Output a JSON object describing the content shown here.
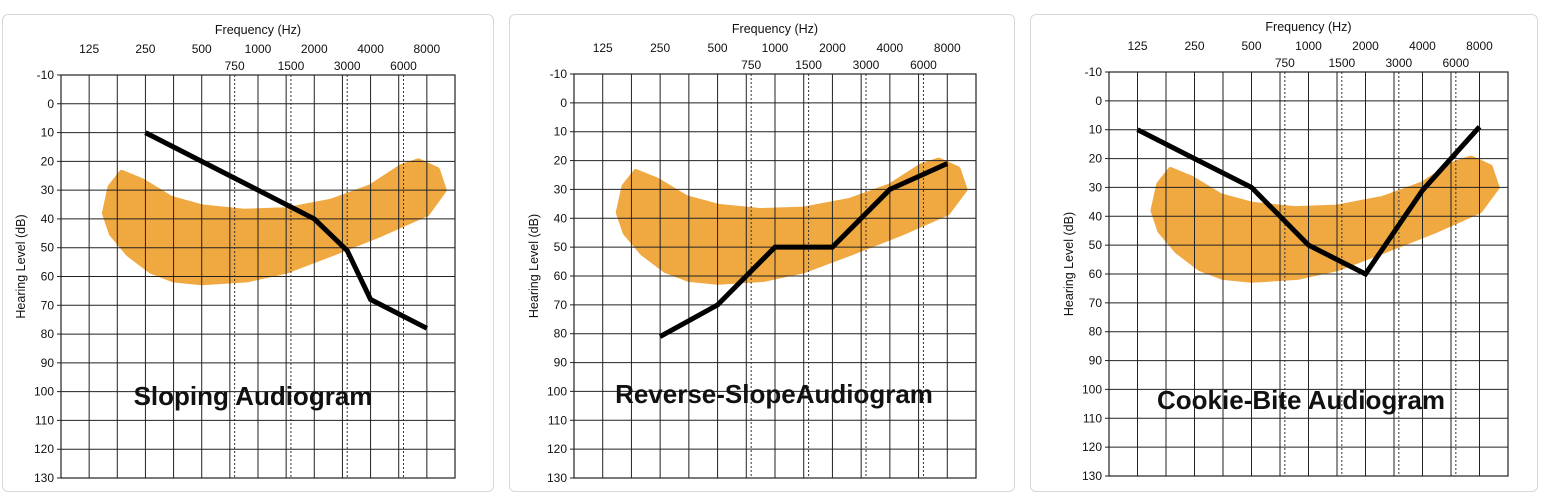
{
  "chart_data": [
    {
      "type": "line",
      "title": "Sloping Audiogram",
      "xlabel": "Frequency (Hz)",
      "ylabel": "Hearing Level (dB)",
      "x_scale": "log2",
      "x_ticks_major": [
        "125",
        "250",
        "500",
        "1000",
        "2000",
        "4000",
        "8000"
      ],
      "x_ticks_minor": [
        "750",
        "1500",
        "3000",
        "6000"
      ],
      "y_ticks": [
        "-10",
        "0",
        "10",
        "20",
        "30",
        "40",
        "50",
        "60",
        "70",
        "80",
        "90",
        "100",
        "110",
        "120",
        "130"
      ],
      "ylim": [
        -10,
        130
      ],
      "y_inverted": true,
      "grid": true,
      "speech_banana_color": "#f0a840",
      "line_color": "#000000",
      "series": [
        {
          "x": [
            250,
            2000,
            3000,
            4000,
            8000
          ],
          "y": [
            10,
            40,
            51,
            68,
            78
          ]
        }
      ]
    },
    {
      "type": "line",
      "title": "Reverse-SlopeAudiogram",
      "xlabel": "Frequency (Hz)",
      "ylabel": "Hearing Level (dB)",
      "x_scale": "log2",
      "x_ticks_major": [
        "125",
        "250",
        "500",
        "1000",
        "2000",
        "4000",
        "8000"
      ],
      "x_ticks_minor": [
        "750",
        "1500",
        "3000",
        "6000"
      ],
      "y_ticks": [
        "-10",
        "0",
        "10",
        "20",
        "30",
        "40",
        "50",
        "60",
        "70",
        "80",
        "90",
        "100",
        "110",
        "120",
        "130"
      ],
      "ylim": [
        -10,
        130
      ],
      "y_inverted": true,
      "grid": true,
      "speech_banana_color": "#f0a840",
      "line_color": "#000000",
      "series": [
        {
          "x": [
            250,
            500,
            1000,
            2000,
            4000,
            8000
          ],
          "y": [
            81,
            70,
            50,
            50,
            30,
            21
          ]
        }
      ]
    },
    {
      "type": "line",
      "title": "Cookie-Bite Audiogram",
      "xlabel": "Frequency (Hz)",
      "ylabel": "Hearing Level (dB)",
      "x_scale": "log2",
      "x_ticks_major": [
        "125",
        "250",
        "500",
        "1000",
        "2000",
        "4000",
        "8000"
      ],
      "x_ticks_minor": [
        "750",
        "1500",
        "3000",
        "6000"
      ],
      "y_ticks": [
        "-10",
        "0",
        "10",
        "20",
        "30",
        "40",
        "50",
        "60",
        "70",
        "80",
        "90",
        "100",
        "110",
        "120",
        "130"
      ],
      "ylim": [
        -10,
        130
      ],
      "y_inverted": true,
      "grid": true,
      "speech_banana_color": "#f0a840",
      "line_color": "#000000",
      "series": [
        {
          "x": [
            125,
            250,
            500,
            1000,
            2000,
            4000,
            8000
          ],
          "y": [
            10,
            20,
            30,
            50,
            60,
            31,
            9
          ]
        }
      ]
    }
  ]
}
